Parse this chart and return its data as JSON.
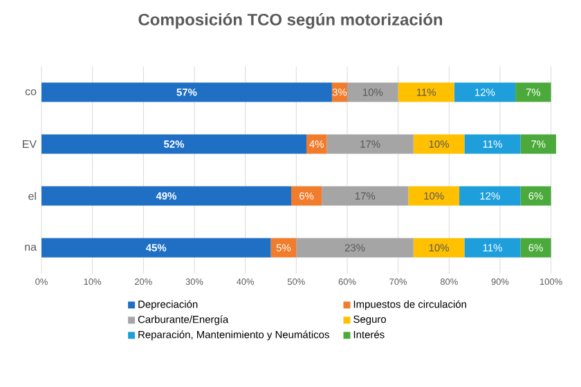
{
  "chart_data": {
    "type": "bar",
    "orientation": "horizontal",
    "stacked": true,
    "title": "Composición TCO según motorización",
    "categories": [
      "co",
      "EV",
      "el",
      "na"
    ],
    "series": [
      {
        "name": "Depreciación",
        "color": "#1f6fc5",
        "values": [
          57,
          52,
          49,
          45
        ],
        "value_labels": [
          "57%",
          "52%",
          "49%",
          "45%"
        ]
      },
      {
        "name": "Impuestos de circulación",
        "color": "#f07c2c",
        "values": [
          3,
          4,
          6,
          5
        ],
        "value_labels": [
          "3%",
          "4%",
          "6%",
          "5%"
        ]
      },
      {
        "name": "Carburante/Energía",
        "color": "#a5a5a5",
        "values": [
          10,
          17,
          17,
          23
        ],
        "value_labels": [
          "10%",
          "17%",
          "17%",
          "23%"
        ]
      },
      {
        "name": "Seguro",
        "color": "#ffc000",
        "values": [
          11,
          10,
          10,
          10
        ],
        "value_labels": [
          "11%",
          "10%",
          "10%",
          "10%"
        ]
      },
      {
        "name": "Reparación, Mantenimiento y Neumáticos",
        "color": "#1e9fdc",
        "values": [
          12,
          11,
          12,
          11
        ],
        "value_labels": [
          "12%",
          "11%",
          "12%",
          "11%"
        ]
      },
      {
        "name": "Interés",
        "color": "#4caa3c",
        "values": [
          7,
          7,
          6,
          6
        ],
        "value_labels": [
          "7%",
          "7%",
          "6%",
          "6%"
        ]
      }
    ],
    "xlim": [
      0,
      101
    ],
    "xticks": [
      {
        "value": 0,
        "label": "0%"
      },
      {
        "value": 10,
        "label": "10%"
      },
      {
        "value": 20,
        "label": "20%"
      },
      {
        "value": 30,
        "label": "30%"
      },
      {
        "value": 40,
        "label": "40%"
      },
      {
        "value": 50,
        "label": "50%"
      },
      {
        "value": 60,
        "label": "60%"
      },
      {
        "value": 70,
        "label": "70%"
      },
      {
        "value": 80,
        "label": "80%"
      },
      {
        "value": 90,
        "label": "90%"
      },
      {
        "value": 100,
        "label": "100%"
      }
    ],
    "grid": "x",
    "legend": "bottom"
  }
}
